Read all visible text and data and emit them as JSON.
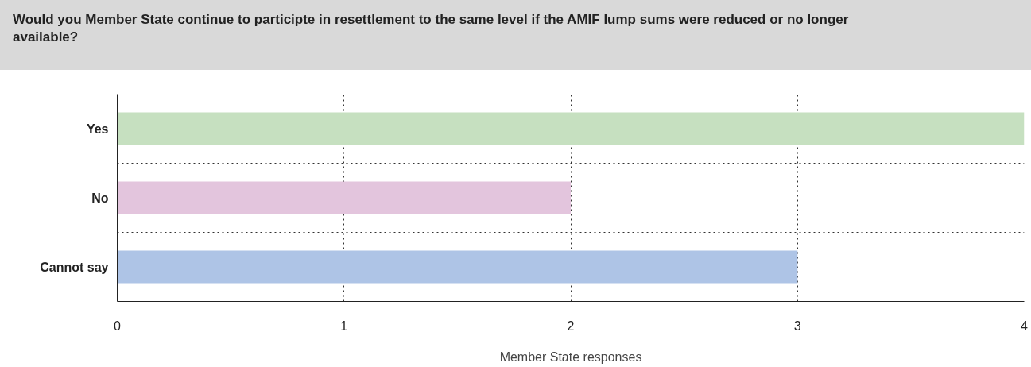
{
  "chart_data": {
    "type": "bar",
    "orientation": "horizontal",
    "title": "Would you Member State continue to participte in resettlement to the same level if the AMIF lump sums were reduced or no longer available?",
    "categories": [
      "Yes",
      "No",
      "Cannot say"
    ],
    "values": [
      4,
      2,
      3
    ],
    "colors": [
      "#c6e0c0",
      "#e3c5dd",
      "#aec4e6"
    ],
    "xlabel": "Member State responses",
    "xlim": [
      0,
      4
    ],
    "xticks": [
      0,
      1,
      2,
      3,
      4
    ],
    "grid": true
  }
}
